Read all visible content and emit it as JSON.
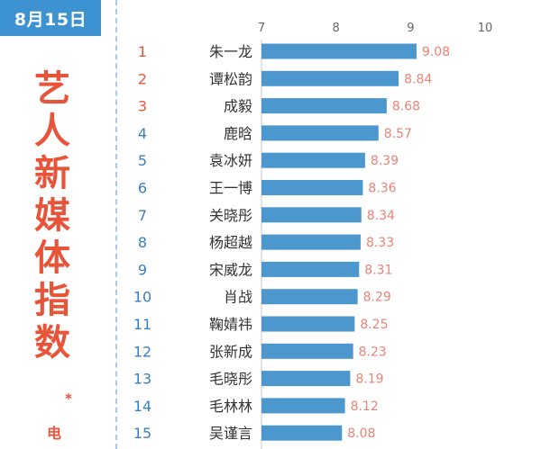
{
  "header": {
    "date": "8月15日",
    "title_chars": [
      "艺",
      "人",
      "新",
      "媒",
      "体",
      "指",
      "数"
    ],
    "footnote_star": "*",
    "footnote_text": "电"
  },
  "colors": {
    "accent_blue": "#3d93d1",
    "bar_blue": "#4d97cf",
    "rank_red": "#e8543a",
    "rank_blue": "#3b7fbf",
    "value_salmon": "#e98377",
    "name_text": "#333333",
    "tick_text": "#666666"
  },
  "chart_data": {
    "type": "bar",
    "orientation": "horizontal",
    "xlim": [
      7,
      10
    ],
    "xticks": [
      "7",
      "8",
      "9",
      "10"
    ],
    "ranks": [
      "1",
      "2",
      "3",
      "4",
      "5",
      "6",
      "7",
      "8",
      "9",
      "10",
      "11",
      "12",
      "13",
      "14",
      "15"
    ],
    "categories": [
      "朱一龙",
      "谭松韵",
      "成毅",
      "鹿晗",
      "袁冰妍",
      "王一博",
      "关晓彤",
      "杨超越",
      "宋威龙",
      "肖战",
      "鞠婧祎",
      "张新成",
      "毛晓彤",
      "毛林林",
      "吴谨言"
    ],
    "values": [
      9.08,
      8.84,
      8.68,
      8.57,
      8.39,
      8.36,
      8.34,
      8.33,
      8.31,
      8.29,
      8.25,
      8.23,
      8.19,
      8.12,
      8.08
    ],
    "value_labels": [
      "9.08",
      "8.84",
      "8.68",
      "8.57",
      "8.39",
      "8.36",
      "8.34",
      "8.33",
      "8.31",
      "8.29",
      "8.25",
      "8.23",
      "8.19",
      "8.12",
      "8.08"
    ],
    "grid": false
  }
}
